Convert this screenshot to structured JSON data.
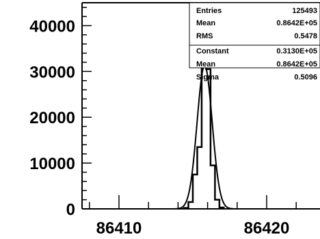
{
  "chart_data": {
    "type": "bar",
    "title": "",
    "xlabel": "",
    "ylabel": "",
    "xlim": [
      86405,
      86420
    ],
    "ylim": [
      0,
      45000
    ],
    "x_ticks": [
      86410,
      86420
    ],
    "y_ticks": [
      0,
      10000,
      20000,
      30000,
      40000
    ],
    "x_tick_labels": [
      "86410",
      "86420"
    ],
    "y_tick_labels": [
      "0",
      "10000",
      "20000",
      "30000",
      "40000"
    ],
    "histogram": {
      "bin_width": 0.3,
      "bins_x": [
        86414.4,
        86414.7,
        86415.0,
        86415.3,
        86415.6,
        86415.9,
        86416.2,
        86416.5,
        86416.8
      ],
      "counts": [
        200,
        1500,
        7500,
        13500,
        31500,
        30500,
        9500,
        2000,
        300
      ]
    },
    "fit": {
      "type": "gaussian",
      "constant": 31300,
      "mean": 86415.8,
      "sigma": 0.5096
    },
    "stats_box": {
      "rows": [
        {
          "label": "Entries",
          "value": "125493"
        },
        {
          "label": "Mean",
          "value": "0.8642E+05"
        },
        {
          "label": "RMS",
          "value": "0.5478"
        },
        {
          "label": "Constant",
          "value": "0.3130E+05"
        },
        {
          "label": "Mean",
          "value": "0.8642E+05"
        },
        {
          "label": "Sigma",
          "value": "0.5096"
        }
      ]
    }
  }
}
